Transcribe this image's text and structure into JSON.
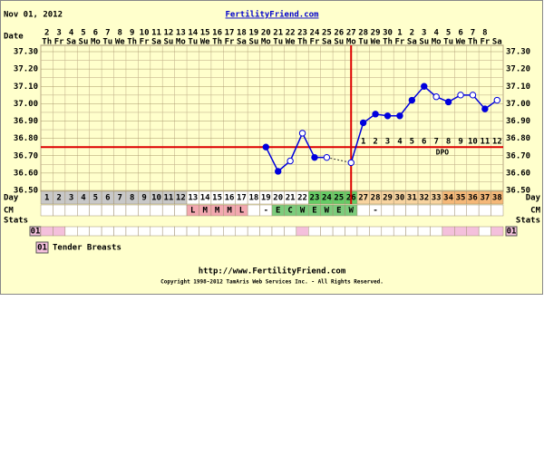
{
  "chart_data": {
    "type": "line",
    "title": "Nov 01, 2012",
    "site": "FertilityFriend.com",
    "url": "http://www.FertilityFriend.com",
    "copyright": "Copyright 1998-2012 TamAris Web Services Inc. - All Rights Reserved.",
    "date_label": "Date",
    "day_label": "Day",
    "cm_label": "CM",
    "stats_label": "Stats",
    "legend": [
      {
        "code": "01",
        "text": "Tender Breasts"
      }
    ],
    "dates": [
      2,
      3,
      4,
      5,
      6,
      7,
      8,
      9,
      10,
      11,
      12,
      13,
      14,
      15,
      16,
      17,
      18,
      19,
      20,
      21,
      22,
      23,
      24,
      25,
      26,
      27,
      28,
      29,
      30,
      1,
      2,
      3,
      4,
      5,
      6,
      7,
      8,
      null
    ],
    "weekdays": [
      "Th",
      "Fr",
      "Sa",
      "Su",
      "Mo",
      "Tu",
      "We",
      "Th",
      "Fr",
      "Sa",
      "Su",
      "Mo",
      "Tu",
      "We",
      "Th",
      "Fr",
      "Sa",
      "Su",
      "Mo",
      "Tu",
      "We",
      "Th",
      "Fr",
      "Sa",
      "Su",
      "Mo",
      "Tu",
      "We",
      "Th",
      "Fr",
      "Sa",
      "Su",
      "Mo",
      "Tu",
      "We",
      "Th",
      "Fr",
      "Sa"
    ],
    "categories": [
      1,
      2,
      3,
      4,
      5,
      6,
      7,
      8,
      9,
      10,
      11,
      12,
      13,
      14,
      15,
      16,
      17,
      18,
      19,
      20,
      21,
      22,
      23,
      24,
      25,
      26,
      27,
      28,
      29,
      30,
      31,
      32,
      33,
      34,
      35,
      36,
      37,
      38
    ],
    "series": [
      {
        "name": "Temperature",
        "color": "#0000dd",
        "values": [
          null,
          null,
          null,
          null,
          null,
          null,
          null,
          null,
          null,
          null,
          null,
          null,
          null,
          null,
          null,
          null,
          null,
          null,
          36.75,
          36.61,
          36.67,
          36.83,
          36.69,
          36.69,
          null,
          36.66,
          36.89,
          36.94,
          36.93,
          36.93,
          37.02,
          37.1,
          37.04,
          37.01,
          37.05,
          37.05,
          36.97,
          37.02
        ],
        "markers": [
          null,
          null,
          null,
          null,
          null,
          null,
          null,
          null,
          null,
          null,
          null,
          null,
          null,
          null,
          null,
          null,
          null,
          null,
          "filled",
          "filled",
          "open",
          "open",
          "filled",
          "open",
          null,
          "open",
          "filled",
          "filled",
          "filled",
          "filled",
          "filled",
          "filled",
          "open",
          "filled",
          "open",
          "open",
          "filled",
          "open"
        ]
      }
    ],
    "bridge_gaps": true,
    "coverline": {
      "value": 36.75,
      "color": "#dd0000"
    },
    "ovulation_day": 26,
    "dpo": [
      null,
      null,
      null,
      null,
      null,
      null,
      null,
      null,
      null,
      null,
      null,
      null,
      null,
      null,
      null,
      null,
      null,
      null,
      null,
      null,
      null,
      null,
      null,
      null,
      null,
      null,
      1,
      2,
      3,
      4,
      5,
      6,
      7,
      8,
      9,
      10,
      11,
      12
    ],
    "dpo_label": "DPO",
    "ylim": [
      36.5,
      37.3
    ],
    "yticks": [
      {
        "value": 36.5,
        "label": "36.50"
      },
      {
        "value": 36.6,
        "label": "36.60"
      },
      {
        "value": 36.7,
        "label": "36.70"
      },
      {
        "value": 36.8,
        "label": "36.80"
      },
      {
        "value": 36.9,
        "label": "36.90"
      },
      {
        "value": 37.0,
        "label": "37.00"
      },
      {
        "value": 37.1,
        "label": "37.10"
      },
      {
        "value": 37.2,
        "label": "37.20"
      },
      {
        "value": 37.3,
        "label": "37.30"
      }
    ],
    "minor_grid": [
      36.55,
      36.65,
      36.75,
      36.85,
      36.95,
      37.05,
      37.15,
      37.25
    ],
    "day_colors": [
      "#c8c8c8",
      "#c8c8c8",
      "#c8c8c8",
      "#c8c8c8",
      "#c8c8c8",
      "#c8c8c8",
      "#c8c8c8",
      "#c8c8c8",
      "#c8c8c8",
      "#c8c8c8",
      "#c8c8c8",
      "#c8c8c8",
      "#ffffff",
      "#ffffff",
      "#ffffff",
      "#ffffff",
      "#ffffff",
      "#ffffff",
      "#ffffff",
      "#ffffff",
      "#ffffff",
      "#ffffff",
      "#66cc66",
      "#66cc66",
      "#66cc66",
      "#66cc66",
      "#f8d4a0",
      "#f8d4a0",
      "#f8d4a0",
      "#f8d4a0",
      "#f8d4a0",
      "#f8d4a0",
      "#f8d4a0",
      "#f5b878",
      "#f5b878",
      "#f5b878",
      "#f5b878",
      "#f5b878"
    ],
    "cm": [
      null,
      null,
      null,
      null,
      null,
      null,
      null,
      null,
      null,
      null,
      null,
      null,
      "L",
      "M",
      "M",
      "M",
      "L",
      null,
      "-",
      "E",
      "C",
      "W",
      "E",
      "W",
      "E",
      "W",
      null,
      "-",
      null,
      null,
      null,
      null,
      null,
      null,
      null,
      null,
      null,
      null
    ],
    "cm_colors": {
      "L": "#f2a8b0",
      "M": "#f2a8b0",
      "E": "#7ccc7c",
      "C": "#7ccc7c",
      "W": "#7ccc7c"
    },
    "stats_marked": [
      true,
      true,
      false,
      false,
      false,
      false,
      false,
      false,
      false,
      false,
      false,
      false,
      false,
      false,
      false,
      false,
      false,
      false,
      false,
      false,
      false,
      true,
      false,
      false,
      false,
      false,
      false,
      false,
      false,
      false,
      false,
      false,
      false,
      true,
      true,
      true,
      false,
      true
    ],
    "stats_color": "#f4c0dc"
  }
}
